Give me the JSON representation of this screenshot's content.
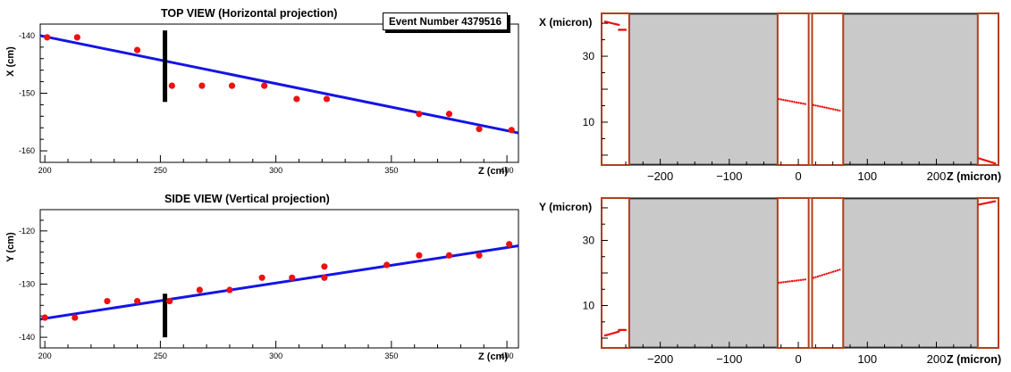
{
  "event_label": "Event Number 4379516",
  "chart_data": [
    {
      "type": "scatter",
      "title": "TOP VIEW (Horizontal projection)",
      "xlabel": "Z (cm)",
      "ylabel": "X (cm)",
      "xlim": [
        198,
        405
      ],
      "ylim": [
        -162,
        -138
      ],
      "xticks": [
        200,
        250,
        300,
        350,
        400
      ],
      "yticks": [
        -160,
        -150,
        -140
      ],
      "points": {
        "x": [
          201,
          214,
          240,
          255,
          268,
          281,
          295,
          309,
          322,
          362,
          375,
          388,
          402
        ],
        "y": [
          -140.3,
          -140.3,
          -142.5,
          -148.7,
          -148.7,
          -148.7,
          -148.7,
          -151.0,
          -151.0,
          -153.6,
          -153.6,
          -156.2,
          -156.4
        ]
      },
      "fit_line": {
        "x": [
          198,
          405
        ],
        "y": [
          -140.0,
          -156.9
        ]
      },
      "marker": {
        "x": 252,
        "y_range": [
          -139.1,
          -151.5
        ]
      },
      "point_color": "#ee1111",
      "line_color": "#1414e6"
    },
    {
      "type": "scatter",
      "title": "SIDE VIEW (Vertical projection)",
      "xlabel": "Z (cm)",
      "ylabel": "Y (cm)",
      "xlim": [
        198,
        405
      ],
      "ylim": [
        -142,
        -116
      ],
      "xticks": [
        200,
        250,
        300,
        350,
        400
      ],
      "yticks": [
        -140,
        -130,
        -120
      ],
      "points": {
        "x": [
          200,
          213,
          227,
          240,
          254,
          267,
          280,
          294,
          307,
          321,
          321,
          348,
          362,
          375,
          388,
          401
        ],
        "y": [
          -136.3,
          -136.3,
          -133.2,
          -133.2,
          -133.2,
          -131.1,
          -131.1,
          -128.8,
          -128.8,
          -126.7,
          -128.8,
          -126.4,
          -124.6,
          -124.6,
          -124.6,
          -122.5
        ]
      },
      "fit_line": {
        "x": [
          198,
          405
        ],
        "y": [
          -136.6,
          -122.8
        ]
      },
      "marker": {
        "x": 252,
        "y_range": [
          -131.8,
          -140.0
        ]
      },
      "point_color": "#ee1111",
      "line_color": "#1414e6"
    },
    {
      "type": "scatter",
      "title": "",
      "xlabel": "Z (micron)",
      "ylabel": "X (micron)",
      "xlim": [
        -285,
        290
      ],
      "ylim": [
        -3,
        43
      ],
      "xticks": [
        -200,
        -100,
        0,
        100,
        200
      ],
      "yticks": [
        10,
        30
      ],
      "sensors_micron": [
        [
          -285,
          -245
        ],
        [
          -30,
          15
        ],
        [
          20,
          65
        ],
        [
          260,
          290
        ]
      ],
      "shaded_micron": [
        [
          -245,
          -30
        ],
        [
          65,
          260
        ]
      ],
      "hit_segments": [
        {
          "x": [
            -280,
            -260
          ],
          "y": [
            40.5,
            39.5
          ]
        },
        {
          "x": [
            -260,
            -250
          ],
          "y": [
            38.0,
            38.0
          ]
        },
        {
          "x": [
            -28,
            10
          ],
          "y": [
            17.0,
            15.5
          ]
        },
        {
          "x": [
            22,
            60
          ],
          "y": [
            15.2,
            13.5
          ]
        },
        {
          "x": [
            262,
            285
          ],
          "y": [
            -1.0,
            -2.5
          ]
        }
      ],
      "sensor_border_color": "#b0401e",
      "shade_color": "#c9c9c9"
    },
    {
      "type": "scatter",
      "title": "",
      "xlabel": "Z (micron)",
      "ylabel": "Y (micron)",
      "xlim": [
        -285,
        290
      ],
      "ylim": [
        -3,
        43
      ],
      "xticks": [
        -200,
        -100,
        0,
        100,
        200
      ],
      "yticks": [
        10,
        30
      ],
      "sensors_micron": [
        [
          -285,
          -245
        ],
        [
          -30,
          15
        ],
        [
          20,
          65
        ],
        [
          260,
          290
        ]
      ],
      "shaded_micron": [
        [
          -245,
          -30
        ],
        [
          65,
          260
        ]
      ],
      "hit_segments": [
        {
          "x": [
            -280,
            -260
          ],
          "y": [
            0.8,
            2.0
          ]
        },
        {
          "x": [
            -260,
            -250
          ],
          "y": [
            2.5,
            2.5
          ]
        },
        {
          "x": [
            -28,
            10
          ],
          "y": [
            17.0,
            18.0
          ]
        },
        {
          "x": [
            22,
            60
          ],
          "y": [
            18.5,
            21.0
          ]
        },
        {
          "x": [
            262,
            285
          ],
          "y": [
            41.0,
            42.0
          ]
        }
      ],
      "sensor_border_color": "#b0401e",
      "shade_color": "#c9c9c9"
    }
  ]
}
